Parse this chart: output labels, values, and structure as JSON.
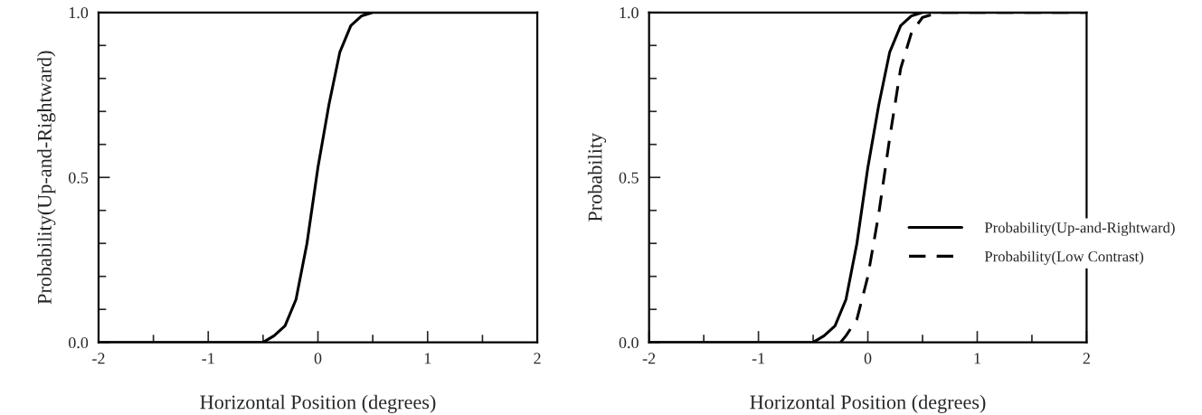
{
  "chart_data": [
    {
      "type": "line",
      "xlabel": "Horizontal Position (degrees)",
      "ylabel": "Probability(Up-and-Rightward)",
      "xlim": [
        -2,
        2
      ],
      "ylim": [
        0,
        1
      ],
      "xticks": [
        -2,
        {
          "value": -1.5,
          "label": null
        },
        -1,
        {
          "value": -0.5,
          "label": null
        },
        0,
        {
          "value": 0.5,
          "label": null
        },
        1,
        {
          "value": 1.5,
          "label": null
        },
        2
      ],
      "yticks": [
        {
          "value": 0,
          "label": "0.0"
        },
        {
          "value": 0.1,
          "label": null
        },
        {
          "value": 0.2,
          "label": null
        },
        {
          "value": 0.3,
          "label": null
        },
        {
          "value": 0.4,
          "label": null
        },
        0.5,
        {
          "value": 0.6,
          "label": null
        },
        {
          "value": 0.7,
          "label": null
        },
        {
          "value": 0.8,
          "label": null
        },
        {
          "value": 0.9,
          "label": null
        },
        {
          "value": 1,
          "label": "1.0"
        }
      ],
      "grid": false,
      "legend": false,
      "line_style": "solid",
      "marker": "none",
      "series": [
        {
          "color": "#000000",
          "x": [
            -2,
            -0.5,
            -0.4,
            -0.3,
            -0.2,
            -0.1,
            0,
            0.1,
            0.2,
            0.3,
            0.4,
            0.5,
            0.6,
            2
          ],
          "values": [
            0,
            0,
            0.02,
            0.05,
            0.13,
            0.3,
            0.53,
            0.72,
            0.88,
            0.96,
            0.99,
            1,
            1,
            1
          ]
        }
      ]
    },
    {
      "type": "line",
      "xlabel": "Horizontal Position (degrees)",
      "ylabel": "Probability",
      "xlim": [
        -2,
        2
      ],
      "ylim": [
        0,
        1
      ],
      "xticks": [
        -2,
        {
          "value": -1.5,
          "label": null
        },
        -1,
        {
          "value": -0.5,
          "label": null
        },
        0,
        {
          "value": 0.5,
          "label": null
        },
        1,
        {
          "value": 1.5,
          "label": null
        },
        2
      ],
      "yticks": [
        {
          "value": 0,
          "label": "0.0"
        },
        {
          "value": 0.1,
          "label": null
        },
        {
          "value": 0.2,
          "label": null
        },
        {
          "value": 0.3,
          "label": null
        },
        {
          "value": 0.4,
          "label": null
        },
        0.5,
        {
          "value": 0.6,
          "label": null
        },
        {
          "value": 0.7,
          "label": null
        },
        {
          "value": 0.8,
          "label": null
        },
        {
          "value": 0.9,
          "label": null
        },
        {
          "value": 1,
          "label": "1.0"
        }
      ],
      "grid": false,
      "legend": "right",
      "marker": "none",
      "series": [
        {
          "name": "Probability(Up-and-Rightward)",
          "color": "#000000",
          "line_style": "solid",
          "x": [
            -2,
            -0.5,
            -0.4,
            -0.3,
            -0.2,
            -0.1,
            0,
            0.1,
            0.2,
            0.3,
            0.4,
            0.5,
            0.6,
            2
          ],
          "values": [
            0,
            0,
            0.02,
            0.05,
            0.13,
            0.3,
            0.53,
            0.72,
            0.88,
            0.96,
            0.99,
            1,
            1,
            1
          ]
        },
        {
          "name": "Probability(Low Contrast)",
          "color": "#000000",
          "line_style": "dashed",
          "x": [
            -0.25,
            -0.2,
            -0.1,
            0,
            0.1,
            0.2,
            0.3,
            0.4,
            0.5,
            0.65,
            2
          ],
          "values": [
            0,
            0.02,
            0.07,
            0.2,
            0.39,
            0.62,
            0.83,
            0.94,
            0.985,
            1,
            1
          ]
        }
      ]
    }
  ]
}
